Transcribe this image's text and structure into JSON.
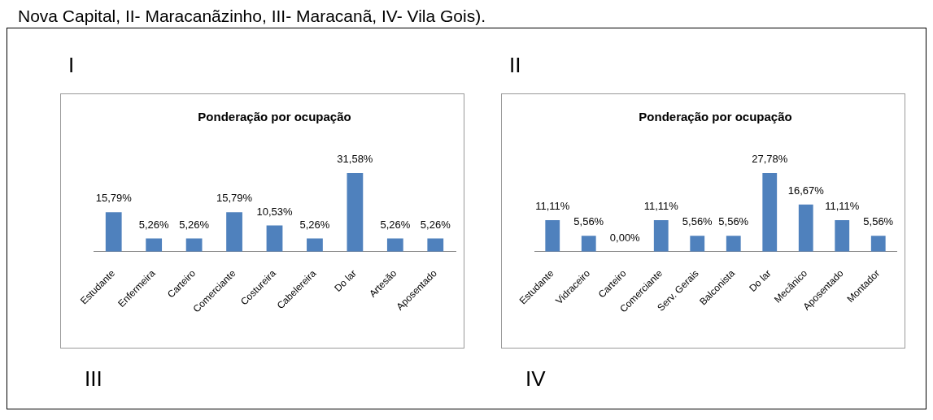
{
  "chart_data": [
    {
      "type": "other",
      "annotations": [
        "Nova Capital, II- Maracanãzinho, III- Maracanã, IV- Vila Gois)."
      ]
    },
    {
      "type": "bar",
      "title": "Ponderação por ocupação",
      "annotations": [
        "I",
        "III"
      ],
      "categories": [
        "Estudante",
        "Enfermeira",
        "Carteiro",
        "Comerciante",
        "Costureira",
        "Cabelereira",
        "Do lar",
        "Artesão",
        "Aposentado"
      ],
      "values": [
        15.79,
        5.26,
        5.26,
        15.79,
        10.53,
        5.26,
        31.58,
        5.26,
        5.26
      ],
      "value_labels": [
        "15,79%",
        "5,26%",
        "5,26%",
        "15,79%",
        "10,53%",
        "5,26%",
        "31,58%",
        "5,26%",
        "5,26%"
      ],
      "color": "#4f81bd",
      "grid": false,
      "legend": false
    },
    {
      "type": "bar",
      "title": "Ponderação por ocupação",
      "annotations": [
        "II",
        "IV"
      ],
      "categories": [
        "Estudante",
        "Vidraceiro",
        "Carteiro",
        "Comerciante",
        "Serv. Gerais",
        "Balconista",
        "Do lar",
        "Mecânico",
        "Aposentado",
        "Montador"
      ],
      "values": [
        11.11,
        5.56,
        0,
        11.11,
        5.56,
        5.56,
        27.78,
        16.67,
        11.11,
        5.56
      ],
      "value_labels": [
        "11,11%",
        "5,56%",
        "0,00%",
        "11,11%",
        "5,56%",
        "5,56%",
        "27,78%",
        "16,67%",
        "11,11%",
        "5,56%"
      ],
      "color": "#4f81bd",
      "grid": false,
      "legend": false
    }
  ]
}
